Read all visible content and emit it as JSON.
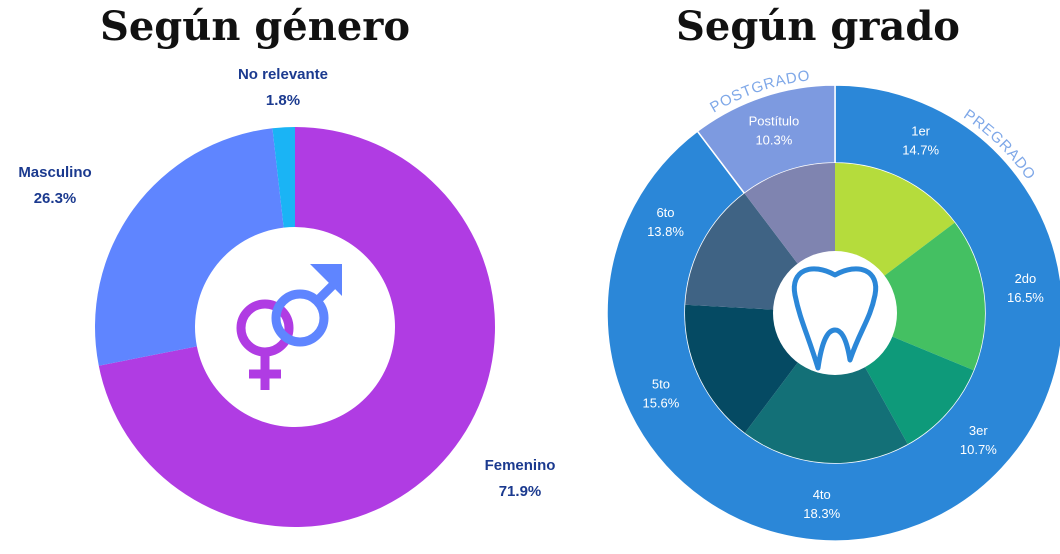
{
  "chart_data": [
    {
      "type": "donut",
      "title": "Según género",
      "categories": [
        "Femenino",
        "Masculino",
        "No relevante"
      ],
      "values": [
        71.9,
        26.3,
        1.8
      ],
      "value_labels": [
        "71.9%",
        "26.3%",
        "1.8%"
      ],
      "colors": [
        "#b03ce3",
        "#5f85ff",
        "#1ab4f5"
      ]
    },
    {
      "type": "sunburst",
      "title": "Según grado",
      "categories": [
        "1er",
        "2do",
        "3er",
        "4to",
        "5to",
        "6to",
        "Postítulo"
      ],
      "values": [
        14.7,
        16.5,
        10.7,
        18.3,
        15.6,
        13.8,
        10.3
      ],
      "value_labels": [
        "14.7%",
        "16.5%",
        "10.7%",
        "18.3%",
        "15.6%",
        "13.8%",
        "10.3%"
      ],
      "colors": [
        "#b5dc3c",
        "#44c062",
        "#0e9a7a",
        "#137077",
        "#054a63",
        "#3f6384",
        "#7f84b0"
      ],
      "groups": [
        {
          "name": "PREGRADO",
          "color": "#2b87d8",
          "members": [
            "1er",
            "2do",
            "3er",
            "4to",
            "5to",
            "6to"
          ]
        },
        {
          "name": "POSTGRADO",
          "color": "#7d9ae0",
          "members": [
            "Postítulo"
          ]
        }
      ]
    }
  ]
}
